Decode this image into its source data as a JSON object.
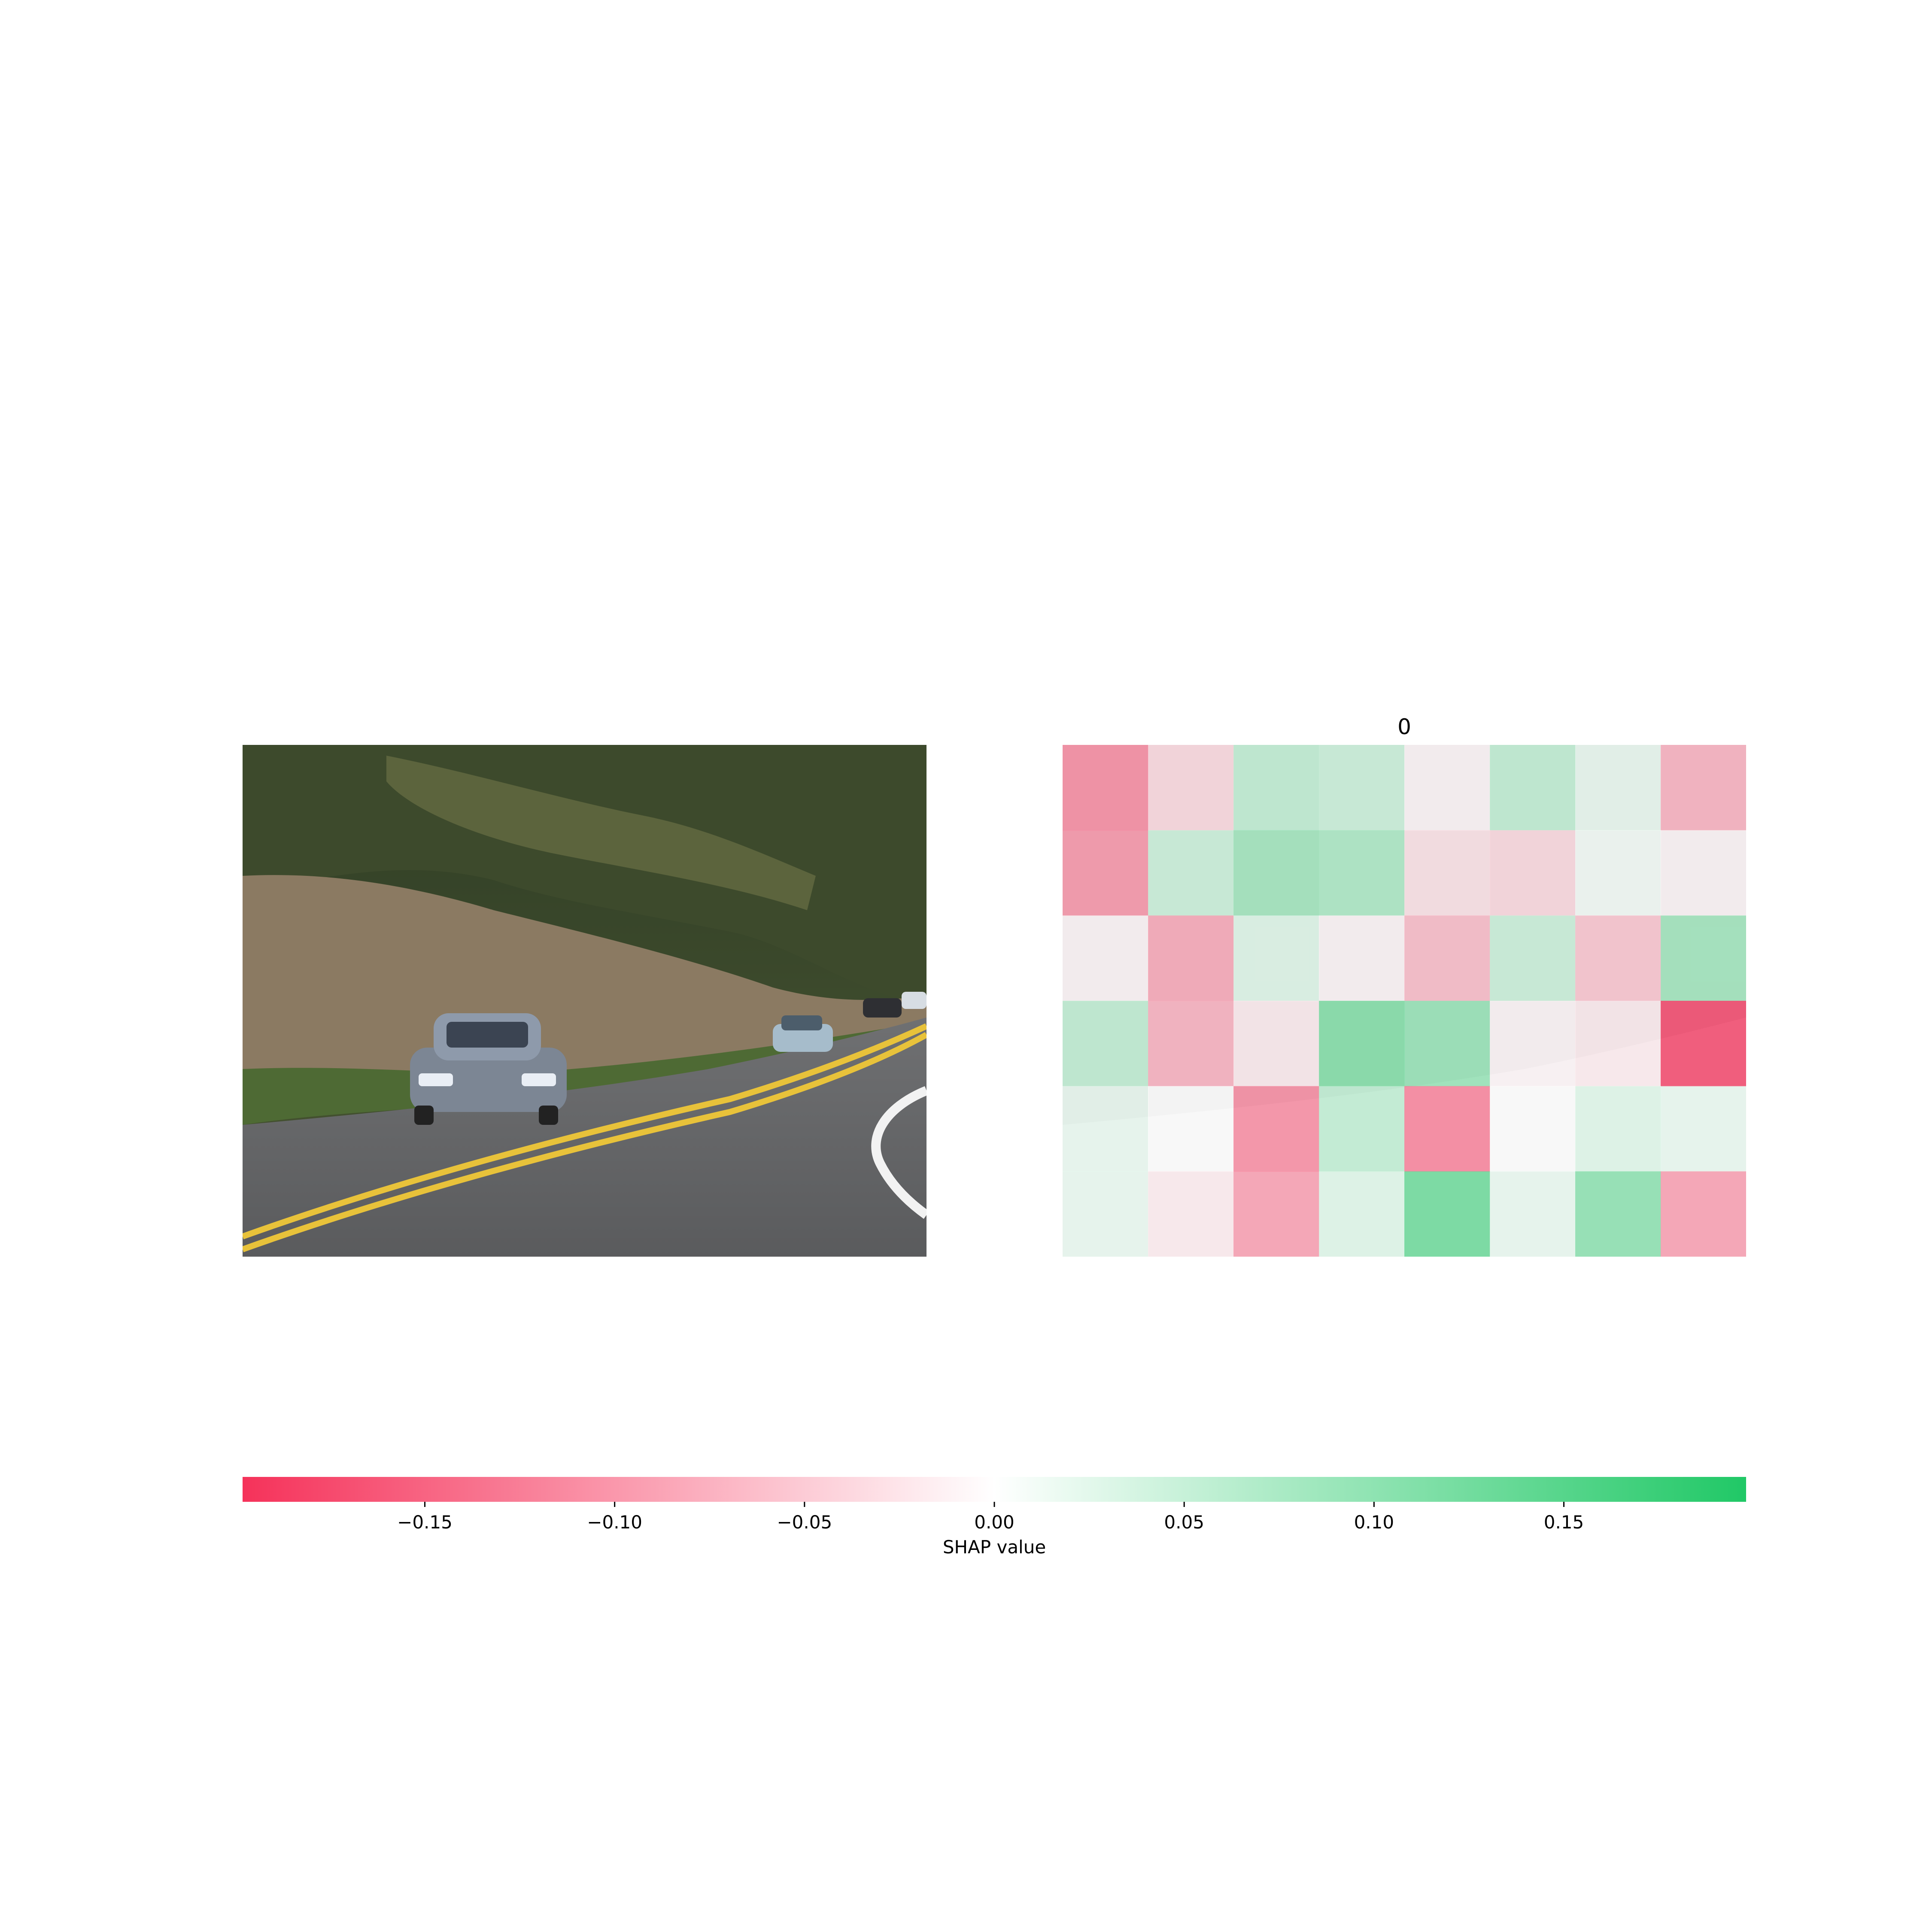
{
  "chart_data": [
    {
      "type": "image",
      "panel": "input-photo",
      "title": ""
    },
    {
      "type": "heatmap",
      "panel": "shap-overlay",
      "title": "0",
      "grid_rows": 6,
      "grid_cols": 8,
      "values": [
        [
          -0.12,
          -0.04,
          0.06,
          0.05,
          -0.01,
          0.06,
          0.02,
          -0.08
        ],
        [
          -0.11,
          0.05,
          0.09,
          0.08,
          -0.03,
          -0.04,
          0.01,
          -0.01
        ],
        [
          -0.01,
          -0.09,
          0.03,
          -0.01,
          -0.07,
          0.05,
          -0.06,
          0.09
        ],
        [
          0.06,
          -0.08,
          -0.02,
          0.12,
          0.1,
          -0.01,
          -0.02,
          -0.19
        ],
        [
          0.02,
          0.0,
          -0.12,
          0.06,
          -0.13,
          0.0,
          0.03,
          0.02
        ],
        [
          0.02,
          -0.02,
          -0.1,
          0.03,
          0.14,
          0.02,
          0.11,
          -0.1
        ]
      ]
    },
    {
      "type": "colorbar",
      "xlabel": "SHAP value",
      "xlim": [
        -0.198,
        0.198
      ],
      "ticks": [
        -0.15,
        -0.1,
        -0.05,
        0.0,
        0.05,
        0.1,
        0.15
      ],
      "tick_labels": [
        "−0.15",
        "−0.10",
        "−0.05",
        "0.00",
        "0.05",
        "0.10",
        "0.15"
      ],
      "colors": {
        "negative": "#f5325a",
        "zero": "#ffffff",
        "positive": "#20c866"
      }
    }
  ]
}
